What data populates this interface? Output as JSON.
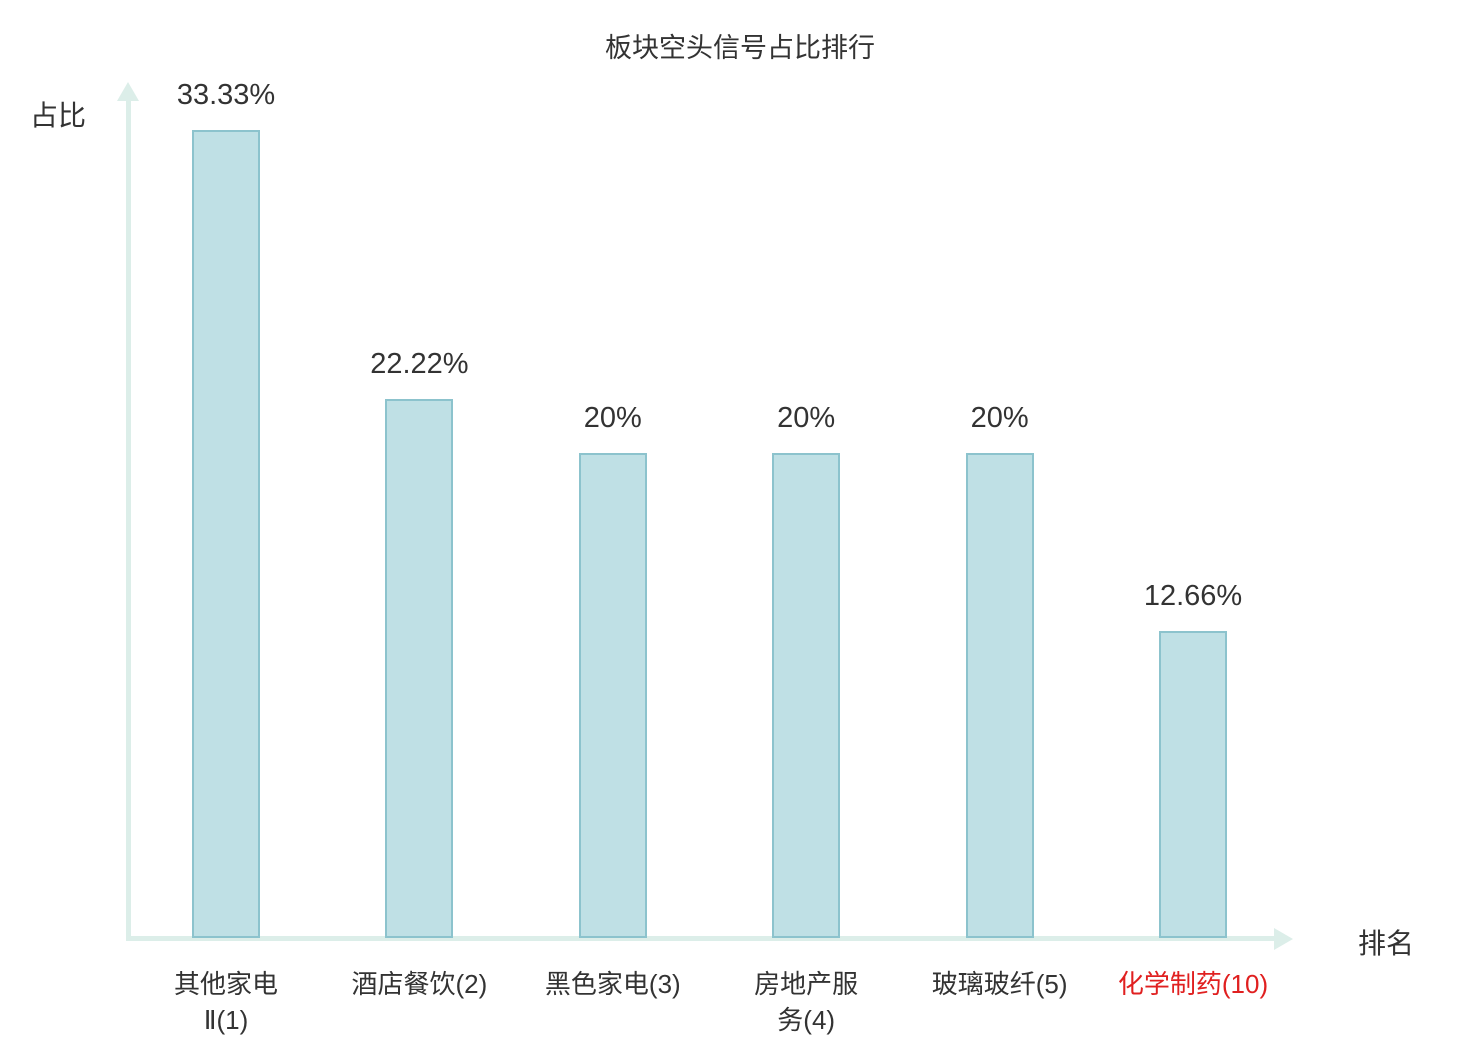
{
  "chart_data": {
    "type": "bar",
    "title": "板块空头信号占比排行",
    "xlabel": "排名",
    "ylabel": "占比",
    "categories": [
      "其他家电Ⅱ(1)",
      "酒店餐饮(2)",
      "黑色家电(3)",
      "房地产服务(4)",
      "玻璃玻纤(5)",
      "化学制药(10)"
    ],
    "categories_display": [
      [
        "其他家电",
        "Ⅱ(1)"
      ],
      [
        "酒店餐饮(2)"
      ],
      [
        "黑色家电(3)"
      ],
      [
        "房地产服",
        "务(4)"
      ],
      [
        "玻璃玻纤(5)"
      ],
      [
        "化学制药(10)"
      ]
    ],
    "values": [
      33.33,
      22.22,
      20,
      20,
      20,
      12.66
    ],
    "value_labels": [
      "33.33%",
      "22.22%",
      "20%",
      "20%",
      "20%",
      "12.66%"
    ],
    "highlight_index": 5,
    "ylim": [
      0,
      35
    ],
    "grid": false,
    "legend": "none"
  },
  "colors": {
    "bar_fill": "#bfe0e5",
    "bar_border": "#8cc3cd",
    "axis": "#dceee9",
    "text": "#333333",
    "highlight": "#e02020",
    "background": "#ffffff"
  }
}
